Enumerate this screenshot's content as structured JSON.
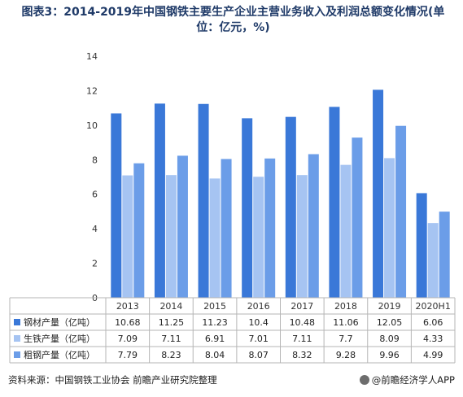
{
  "title": "图表3：2014-2019年中国钢铁主要生产企业主营业务收入及利润总额变化情况(单位：亿元，%)",
  "source": "资料来源：中国钢铁工业协会 前瞻产业研究院整理",
  "brand": "@前瞻经济学人APP",
  "colors": {
    "steel": "#3a78d8",
    "iron": "#a6c4f2",
    "crude": "#6b9de8"
  },
  "chart_data": {
    "type": "bar",
    "categories": [
      "2013",
      "2014",
      "2015",
      "2016",
      "2017",
      "2018",
      "2019",
      "2020H1"
    ],
    "series": [
      {
        "name": "钢材产量（亿吨）",
        "values": [
          10.68,
          11.25,
          11.23,
          10.4,
          10.48,
          11.06,
          12.05,
          6.06
        ],
        "labels": [
          "10.68",
          "11.25",
          "11.23",
          "10.4",
          "10.48",
          "11.06",
          "12.05",
          "6.06"
        ]
      },
      {
        "name": "生铁产量（亿吨）",
        "values": [
          7.09,
          7.11,
          6.91,
          7.01,
          7.11,
          7.7,
          8.09,
          4.33
        ],
        "labels": [
          "7.09",
          "7.11",
          "6.91",
          "7.01",
          "7.11",
          "7.7",
          "8.09",
          "4.33"
        ]
      },
      {
        "name": "粗钢产量（亿吨）",
        "values": [
          7.79,
          8.23,
          8.04,
          8.07,
          8.32,
          9.28,
          9.96,
          4.99
        ],
        "labels": [
          "7.79",
          "8.23",
          "8.04",
          "8.07",
          "8.32",
          "9.28",
          "9.96",
          "4.99"
        ]
      }
    ],
    "ylim": [
      0,
      14
    ],
    "yticks": [
      0,
      2,
      4,
      6,
      8,
      10,
      12,
      14
    ],
    "grid": false,
    "legend": "data-table-left"
  }
}
